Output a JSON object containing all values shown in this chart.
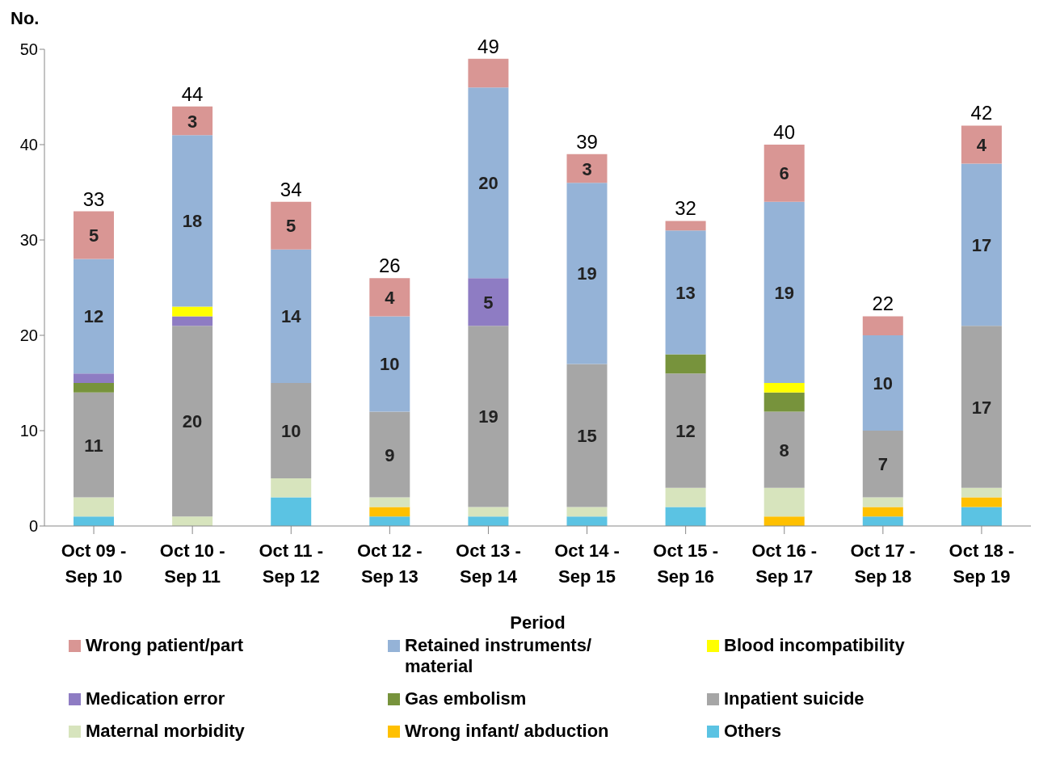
{
  "chart_data": {
    "type": "bar",
    "stacked": true,
    "ylabel": "No.",
    "xlabel": "Period",
    "categories": [
      "Oct 09 - Sep 10",
      "Oct 10 - Sep 11",
      "Oct 11 - Sep 12",
      "Oct 12 - Sep 13",
      "Oct 13 - Sep 14",
      "Oct 14 - Sep 15",
      "Oct 15 - Sep 16",
      "Oct 16 - Sep 17",
      "Oct 17 - Sep 18",
      "Oct 18 - Sep 19"
    ],
    "ylim": [
      0,
      50
    ],
    "yticks": [
      0,
      10,
      20,
      30,
      40,
      50
    ],
    "legend": "bottom",
    "totals": [
      "33",
      "44",
      "34",
      "26",
      "49",
      "39",
      "32",
      "40",
      "22",
      "42"
    ],
    "series": [
      {
        "name": "Others",
        "color": "#5bc3e3",
        "values": [
          1,
          0,
          3,
          1,
          1,
          1,
          2,
          0,
          1,
          2
        ]
      },
      {
        "name": "Wrong infant/ abduction",
        "color": "#ffc000",
        "values": [
          0,
          0,
          0,
          1,
          0,
          0,
          0,
          1,
          1,
          1
        ]
      },
      {
        "name": "Maternal morbidity",
        "color": "#d7e4bd",
        "values": [
          2,
          1,
          2,
          1,
          1,
          1,
          2,
          3,
          1,
          1
        ]
      },
      {
        "name": "Inpatient suicide",
        "color": "#a6a6a6",
        "values": [
          11,
          20,
          10,
          9,
          19,
          15,
          12,
          8,
          7,
          17
        ],
        "value_labels": [
          "11",
          "20",
          "10",
          "9",
          "19",
          "15",
          "12",
          "8",
          "7",
          "17"
        ]
      },
      {
        "name": "Gas embolism",
        "color": "#77933c",
        "values": [
          1,
          0,
          0,
          0,
          0,
          0,
          2,
          2,
          0,
          0
        ]
      },
      {
        "name": "Medication error",
        "color": "#8e7cc3",
        "values": [
          1,
          1,
          0,
          0,
          5,
          0,
          0,
          0,
          0,
          0
        ],
        "value_labels": [
          null,
          null,
          null,
          null,
          "5",
          null,
          null,
          null,
          null,
          null
        ]
      },
      {
        "name": "Blood incompatibility",
        "color": "#ffff00",
        "values": [
          0,
          1,
          0,
          0,
          0,
          0,
          0,
          1,
          0,
          0
        ]
      },
      {
        "name": "Retained instruments/ material",
        "color": "#95b3d7",
        "values": [
          12,
          18,
          14,
          10,
          20,
          19,
          13,
          19,
          10,
          17
        ],
        "value_labels": [
          "12",
          "18",
          "14",
          "10",
          "20",
          "19",
          "13",
          "19",
          "10",
          "17"
        ]
      },
      {
        "name": "Wrong patient/part",
        "color": "#d99694",
        "values": [
          5,
          3,
          5,
          4,
          3,
          3,
          1,
          6,
          2,
          4
        ],
        "value_labels": [
          "5",
          "3",
          "5",
          "4",
          null,
          "3",
          null,
          "6",
          null,
          "4"
        ]
      }
    ]
  }
}
